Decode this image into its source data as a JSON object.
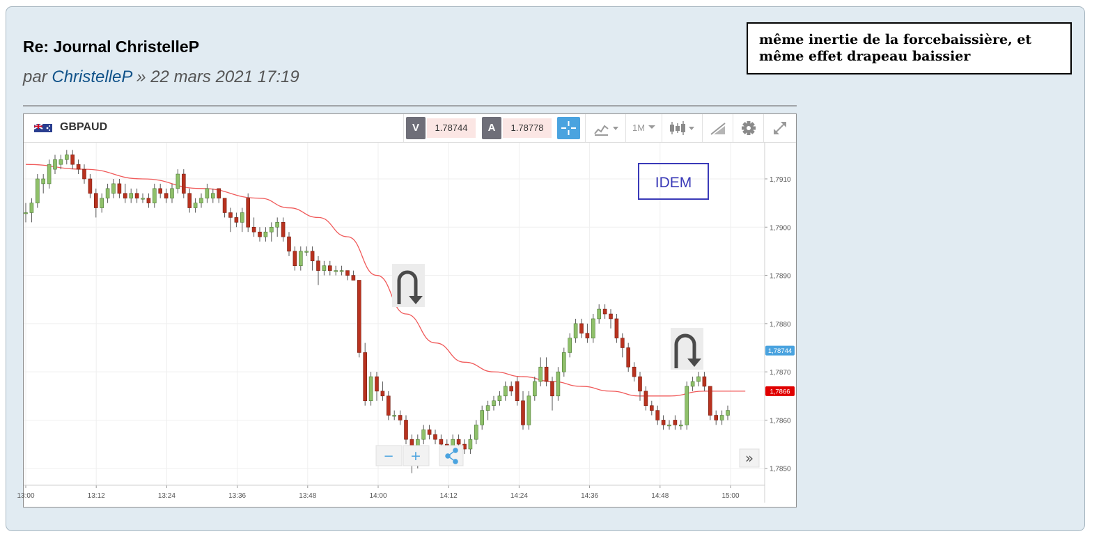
{
  "post": {
    "title": "Re: Journal ChristelleP",
    "meta_prefix": "par ",
    "author": "ChristelleP",
    "meta_suffix": " » 22 mars 2021 17:19"
  },
  "callout": {
    "line1": "même inertie de la forcebaissière, et",
    "line2": "même effet drapeau baissier"
  },
  "toolbar": {
    "symbol": "GBPAUD",
    "sell_label": "V",
    "sell_price": "1.78744",
    "buy_label": "A",
    "buy_price": "1.78778",
    "timeframe": "1M",
    "icons": [
      "crosshair-icon",
      "indicators-icon",
      "candlestick-type-icon",
      "drawing-icon",
      "gear-icon",
      "expand-icon"
    ]
  },
  "annotation": {
    "idem": "IDEM"
  },
  "zoom": {
    "minus": "−",
    "plus": "+",
    "scroll_label": "»"
  },
  "colors": {
    "bull": "#8fc06a",
    "bear": "#b8321f",
    "ma": "#f05a5a",
    "accent": "#4aa3df",
    "annotation": "#3a3ab8",
    "post_bg": "#e1ebf2"
  },
  "chart_data": {
    "type": "candlestick",
    "symbol": "GBPAUD",
    "interval": "1M",
    "x_tick_labels": [
      "13:00",
      "13:12",
      "13:24",
      "13:36",
      "13:48",
      "14:00",
      "14:12",
      "14:24",
      "14:36",
      "14:48",
      "15:00"
    ],
    "y_tick_labels": [
      "1,7850",
      "1,7860",
      "1,7870",
      "1,7880",
      "1,7890",
      "1,7900",
      "1,7910"
    ],
    "ylim": [
      1.78465,
      1.79175
    ],
    "grid": true,
    "price_markers": [
      {
        "value": 1.78744,
        "label": "1,78744",
        "color": "#4aa3df"
      },
      {
        "value": 1.7866,
        "label": "1,7866",
        "color": "#e00000"
      }
    ],
    "ohlc": [
      [
        1.7903,
        1.7905,
        1.7901,
        1.7903
      ],
      [
        1.7903,
        1.7906,
        1.7901,
        1.7905
      ],
      [
        1.7905,
        1.7911,
        1.7904,
        1.791
      ],
      [
        1.7909,
        1.7911,
        1.7907,
        1.791
      ],
      [
        1.7909,
        1.7914,
        1.7908,
        1.7913
      ],
      [
        1.7912,
        1.7915,
        1.7911,
        1.7914
      ],
      [
        1.7913,
        1.7915,
        1.7912,
        1.7914
      ],
      [
        1.7914,
        1.7916,
        1.7913,
        1.7915
      ],
      [
        1.7915,
        1.7916,
        1.7912,
        1.7913
      ],
      [
        1.7913,
        1.7914,
        1.7911,
        1.7912
      ],
      [
        1.7912,
        1.7913,
        1.7909,
        1.791
      ],
      [
        1.791,
        1.7911,
        1.7906,
        1.7907
      ],
      [
        1.7907,
        1.7908,
        1.7902,
        1.7904
      ],
      [
        1.7904,
        1.7907,
        1.7903,
        1.7906
      ],
      [
        1.7906,
        1.7909,
        1.7905,
        1.7908
      ],
      [
        1.7907,
        1.791,
        1.7906,
        1.7909
      ],
      [
        1.7909,
        1.791,
        1.7906,
        1.7907
      ],
      [
        1.7907,
        1.7909,
        1.7905,
        1.7906
      ],
      [
        1.7906,
        1.7908,
        1.7905,
        1.7907
      ],
      [
        1.7907,
        1.7908,
        1.7905,
        1.7906
      ],
      [
        1.7906,
        1.7907,
        1.7905,
        1.7906
      ],
      [
        1.7906,
        1.7907,
        1.7904,
        1.7905
      ],
      [
        1.7905,
        1.7909,
        1.7904,
        1.7908
      ],
      [
        1.7908,
        1.7909,
        1.7906,
        1.7907
      ],
      [
        1.7907,
        1.7908,
        1.7905,
        1.7906
      ],
      [
        1.7906,
        1.7909,
        1.7905,
        1.7908
      ],
      [
        1.7908,
        1.7912,
        1.7907,
        1.7911
      ],
      [
        1.7911,
        1.7912,
        1.7906,
        1.7907
      ],
      [
        1.7907,
        1.7908,
        1.7903,
        1.7904
      ],
      [
        1.7904,
        1.7906,
        1.7903,
        1.7905
      ],
      [
        1.7905,
        1.7907,
        1.7904,
        1.7906
      ],
      [
        1.7906,
        1.7909,
        1.7905,
        1.7908
      ],
      [
        1.7906,
        1.7908,
        1.7905,
        1.7907
      ],
      [
        1.7908,
        1.7908,
        1.7905,
        1.7906
      ],
      [
        1.7906,
        1.7906,
        1.7902,
        1.7903
      ],
      [
        1.7903,
        1.7904,
        1.7899,
        1.7902
      ],
      [
        1.7902,
        1.7903,
        1.79,
        1.7901
      ],
      [
        1.7901,
        1.7904,
        1.7899,
        1.7903
      ],
      [
        1.7906,
        1.7907,
        1.7899,
        1.79
      ],
      [
        1.79,
        1.7902,
        1.7898,
        1.7899
      ],
      [
        1.7899,
        1.79,
        1.7897,
        1.7898
      ],
      [
        1.7898,
        1.79,
        1.7897,
        1.7899
      ],
      [
        1.7899,
        1.7901,
        1.7897,
        1.79
      ],
      [
        1.79,
        1.7902,
        1.7898,
        1.7901
      ],
      [
        1.7901,
        1.7902,
        1.7897,
        1.7898
      ],
      [
        1.7898,
        1.7899,
        1.7894,
        1.7895
      ],
      [
        1.7895,
        1.7896,
        1.7891,
        1.7892
      ],
      [
        1.7892,
        1.7896,
        1.7891,
        1.7895
      ],
      [
        1.7895,
        1.7896,
        1.7894,
        1.7895
      ],
      [
        1.7895,
        1.7896,
        1.7891,
        1.7893
      ],
      [
        1.7893,
        1.7894,
        1.7888,
        1.7891
      ],
      [
        1.7891,
        1.7893,
        1.789,
        1.7892
      ],
      [
        1.7892,
        1.7893,
        1.789,
        1.7891
      ],
      [
        1.7891,
        1.7892,
        1.789,
        1.7891
      ],
      [
        1.7891,
        1.7892,
        1.789,
        1.7891
      ],
      [
        1.7891,
        1.7891,
        1.7889,
        1.789
      ],
      [
        1.789,
        1.7891,
        1.7889,
        1.7889
      ],
      [
        1.7889,
        1.7889,
        1.7873,
        1.7874
      ],
      [
        1.7874,
        1.7876,
        1.7863,
        1.7864
      ],
      [
        1.7864,
        1.787,
        1.7863,
        1.7869
      ],
      [
        1.7869,
        1.787,
        1.7864,
        1.7866
      ],
      [
        1.7866,
        1.7868,
        1.7864,
        1.7865
      ],
      [
        1.7865,
        1.7866,
        1.786,
        1.7861
      ],
      [
        1.7861,
        1.7862,
        1.786,
        1.7861
      ],
      [
        1.7861,
        1.7862,
        1.7859,
        1.786
      ],
      [
        1.786,
        1.7861,
        1.7855,
        1.7856
      ],
      [
        1.7856,
        1.7857,
        1.7849,
        1.7851
      ],
      [
        1.7851,
        1.7857,
        1.785,
        1.7856
      ],
      [
        1.7856,
        1.7859,
        1.7855,
        1.7858
      ],
      [
        1.7858,
        1.7859,
        1.7856,
        1.7857
      ],
      [
        1.7857,
        1.7858,
        1.7855,
        1.7856
      ],
      [
        1.7856,
        1.7857,
        1.7854,
        1.7855
      ],
      [
        1.7855,
        1.7856,
        1.7853,
        1.7854
      ],
      [
        1.7854,
        1.7857,
        1.7853,
        1.7856
      ],
      [
        1.7856,
        1.7857,
        1.7854,
        1.7855
      ],
      [
        1.7855,
        1.7856,
        1.7853,
        1.7854
      ],
      [
        1.7854,
        1.7857,
        1.7853,
        1.7856
      ],
      [
        1.7856,
        1.786,
        1.7855,
        1.7859
      ],
      [
        1.7859,
        1.7863,
        1.7858,
        1.7862
      ],
      [
        1.7862,
        1.7864,
        1.786,
        1.7863
      ],
      [
        1.7863,
        1.7865,
        1.7862,
        1.7864
      ],
      [
        1.7864,
        1.7866,
        1.7863,
        1.7865
      ],
      [
        1.7865,
        1.7868,
        1.7864,
        1.7867
      ],
      [
        1.7867,
        1.7868,
        1.7865,
        1.7866
      ],
      [
        1.7868,
        1.7869,
        1.7863,
        1.7864
      ],
      [
        1.7864,
        1.7866,
        1.7858,
        1.7859
      ],
      [
        1.7859,
        1.7866,
        1.7858,
        1.7865
      ],
      [
        1.7865,
        1.7869,
        1.7864,
        1.7868
      ],
      [
        1.7868,
        1.7873,
        1.7867,
        1.7871
      ],
      [
        1.7871,
        1.7873,
        1.7867,
        1.7868
      ],
      [
        1.7868,
        1.7869,
        1.7862,
        1.7865
      ],
      [
        1.7865,
        1.7871,
        1.7864,
        1.787
      ],
      [
        1.787,
        1.7875,
        1.7869,
        1.7874
      ],
      [
        1.7874,
        1.7878,
        1.7873,
        1.7877
      ],
      [
        1.7877,
        1.7881,
        1.7876,
        1.788
      ],
      [
        1.788,
        1.7881,
        1.7877,
        1.7878
      ],
      [
        1.7878,
        1.788,
        1.7876,
        1.7877
      ],
      [
        1.7877,
        1.7882,
        1.7876,
        1.7881
      ],
      [
        1.7881,
        1.7884,
        1.788,
        1.7883
      ],
      [
        1.7883,
        1.7884,
        1.7881,
        1.7882
      ],
      [
        1.7882,
        1.7883,
        1.7879,
        1.7881
      ],
      [
        1.7881,
        1.7882,
        1.7876,
        1.7877
      ],
      [
        1.7877,
        1.7878,
        1.7873,
        1.7875
      ],
      [
        1.7875,
        1.7876,
        1.787,
        1.7871
      ],
      [
        1.7871,
        1.7872,
        1.7868,
        1.7869
      ],
      [
        1.7869,
        1.787,
        1.7864,
        1.7866
      ],
      [
        1.7866,
        1.7867,
        1.7862,
        1.7863
      ],
      [
        1.7863,
        1.7864,
        1.7861,
        1.7862
      ],
      [
        1.7862,
        1.7863,
        1.7859,
        1.786
      ],
      [
        1.786,
        1.7861,
        1.7858,
        1.7859
      ],
      [
        1.7859,
        1.786,
        1.7858,
        1.7859
      ],
      [
        1.786,
        1.7861,
        1.7858,
        1.7859
      ],
      [
        1.7859,
        1.786,
        1.7858,
        1.7859
      ],
      [
        1.7859,
        1.7868,
        1.7858,
        1.7867
      ],
      [
        1.7867,
        1.7869,
        1.7866,
        1.7868
      ],
      [
        1.7868,
        1.787,
        1.7867,
        1.7869
      ],
      [
        1.7869,
        1.787,
        1.7866,
        1.7867
      ],
      [
        1.7867,
        1.7867,
        1.786,
        1.7861
      ],
      [
        1.7861,
        1.7862,
        1.7859,
        1.786
      ],
      [
        1.786,
        1.7862,
        1.7859,
        1.7861
      ],
      [
        1.7861,
        1.7863,
        1.786,
        1.7862
      ]
    ],
    "moving_average": {
      "points": [
        [
          0,
          1.7913
        ],
        [
          10,
          1.7912
        ],
        [
          20,
          1.791
        ],
        [
          30,
          1.7908
        ],
        [
          40,
          1.7906
        ],
        [
          45,
          1.7904
        ],
        [
          50,
          1.7902
        ],
        [
          55,
          1.7898
        ],
        [
          60,
          1.789
        ],
        [
          65,
          1.7882
        ],
        [
          70,
          1.7876
        ],
        [
          75,
          1.7872
        ],
        [
          80,
          1.787
        ],
        [
          85,
          1.7869
        ],
        [
          90,
          1.7868
        ],
        [
          95,
          1.7867
        ],
        [
          100,
          1.7866
        ],
        [
          105,
          1.7865
        ],
        [
          110,
          1.7865
        ],
        [
          116,
          1.7866
        ],
        [
          123,
          1.7866
        ]
      ]
    }
  }
}
